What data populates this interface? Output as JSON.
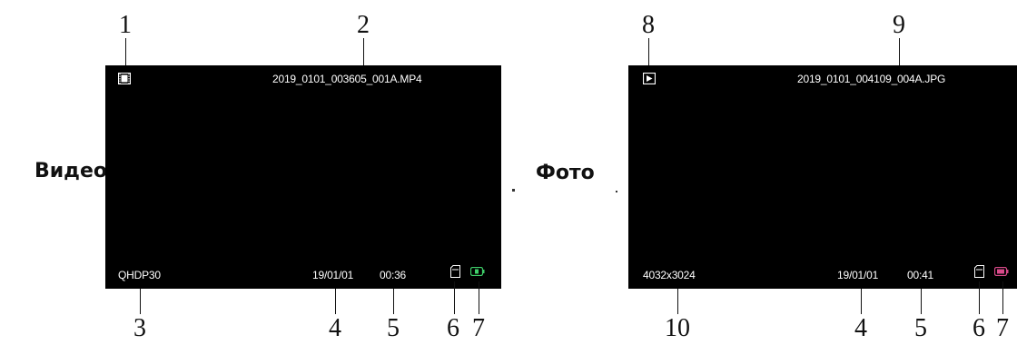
{
  "video": {
    "side_label": "Видео",
    "mode_icon": "film-icon",
    "filename": "2019_0101_003605_001A.MP4",
    "resolution": "QHDP30",
    "date": "19/01/01",
    "time": "00:36",
    "sd_icon": "sd-card-icon",
    "battery_icon": "battery-icon",
    "battery_color": "#3fcf6a",
    "callouts": {
      "n1": "1",
      "n2": "2",
      "n3": "3",
      "n4": "4",
      "n5": "5",
      "n6": "6",
      "n7": "7"
    }
  },
  "photo": {
    "side_label": "Фото",
    "mode_icon": "play-icon",
    "filename": "2019_0101_004109_004A.JPG",
    "resolution": "4032x3024",
    "date": "19/01/01",
    "time": "00:41",
    "sd_icon": "sd-card-icon",
    "battery_icon": "battery-icon",
    "battery_color": "#d94a8a",
    "callouts": {
      "n8": "8",
      "n9": "9",
      "n10": "10",
      "n4": "4",
      "n5": "5",
      "n6": "6",
      "n7": "7"
    }
  }
}
